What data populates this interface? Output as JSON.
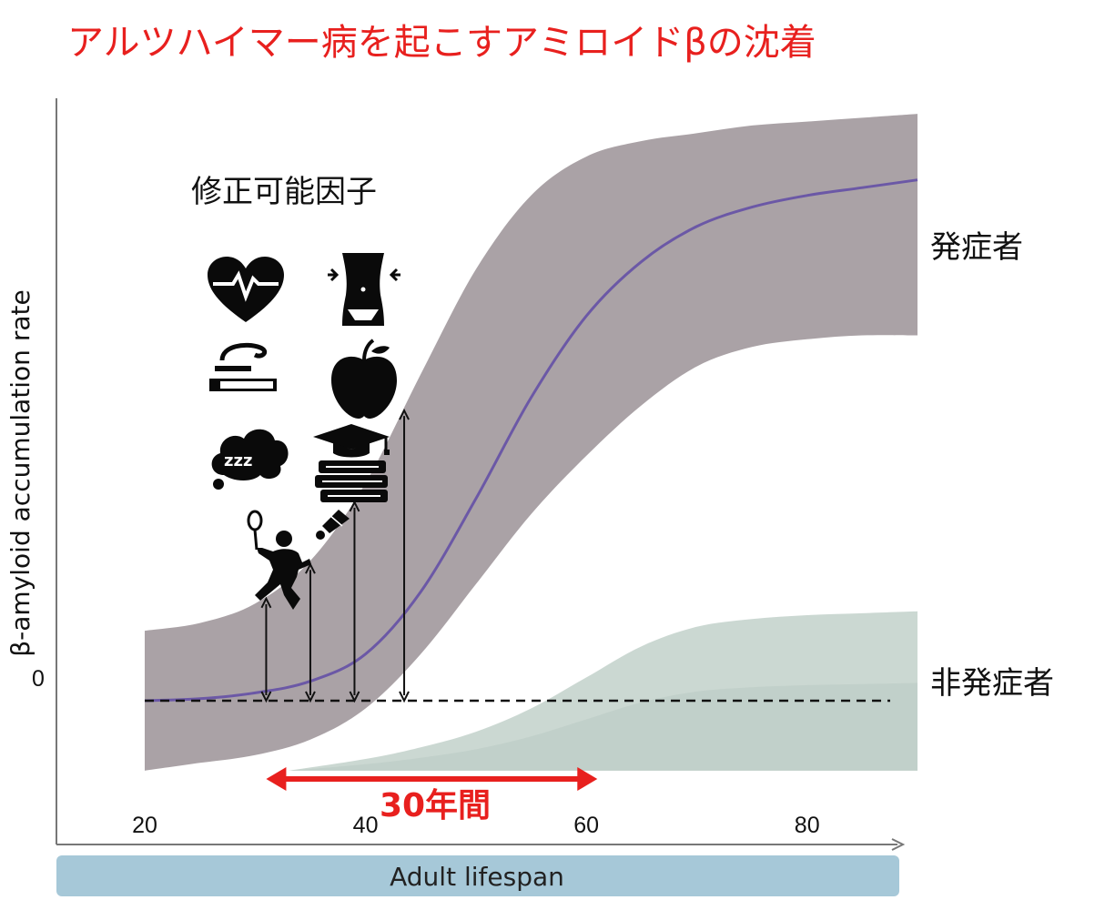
{
  "chart_data": {
    "type": "area",
    "title": "アルツハイマー病を起こすアミロイドβの沈着",
    "ylabel": "β-amyloid accumulation rate",
    "xlabel": "Adult lifespan",
    "x_ticks": [
      20,
      40,
      60,
      80
    ],
    "y_ticks": [
      0
    ],
    "xlim": [
      12,
      90
    ],
    "ylim": [
      -3.7,
      15.5
    ],
    "series": [
      {
        "name": "発症者",
        "x": [
          20,
          25,
          30,
          35,
          40,
          45,
          50,
          55,
          60,
          65,
          70,
          75,
          80,
          85,
          90
        ],
        "y": [
          0,
          0.05,
          0.2,
          0.5,
          1.2,
          2.8,
          5.2,
          7.8,
          9.9,
          11.3,
          12.2,
          12.7,
          13.0,
          13.2,
          13.4
        ],
        "lower": [
          -1.8,
          -1.6,
          -1.4,
          -1.0,
          -0.2,
          1.2,
          3.0,
          4.8,
          6.3,
          7.6,
          8.6,
          9.1,
          9.3,
          9.4,
          9.4
        ],
        "upper": [
          1.8,
          2.0,
          2.5,
          3.6,
          5.6,
          8.4,
          11.1,
          13.0,
          14.0,
          14.4,
          14.6,
          14.8,
          14.9,
          15.0,
          15.1
        ]
      },
      {
        "name": "非発症者",
        "x": [
          33,
          40,
          45,
          50,
          55,
          60,
          65,
          70,
          75,
          80,
          85,
          90
        ],
        "lower": [
          -1.8,
          -1.8,
          -1.8,
          -1.8,
          -1.8,
          -1.8,
          -1.8,
          -1.8,
          -1.8,
          -1.8,
          -1.8,
          -1.8
        ],
        "upper": [
          -1.8,
          -1.5,
          -1.2,
          -0.8,
          -0.2,
          0.6,
          1.4,
          1.9,
          2.1,
          2.2,
          2.25,
          2.3
        ]
      }
    ],
    "arrows_x": [
      31,
      35,
      39,
      43.5
    ],
    "annotations": {
      "factors_label": "修正可能因子",
      "span_label": "30年間",
      "span_start": 31,
      "span_end": 61
    },
    "colors": {
      "band": "#aaa2a6",
      "line": "#6b58a6",
      "nonpatient_band": "#c8d6d0",
      "accent": "#e8201e",
      "lifespan_bar": "#a6c8d8"
    },
    "icons": [
      "heart-pulse-icon",
      "waist-icon",
      "cigarette-icon",
      "apple-icon",
      "sleep-cloud-icon",
      "graduation-books-icon",
      "badminton-player-icon",
      "shuttlecock-icon"
    ]
  }
}
